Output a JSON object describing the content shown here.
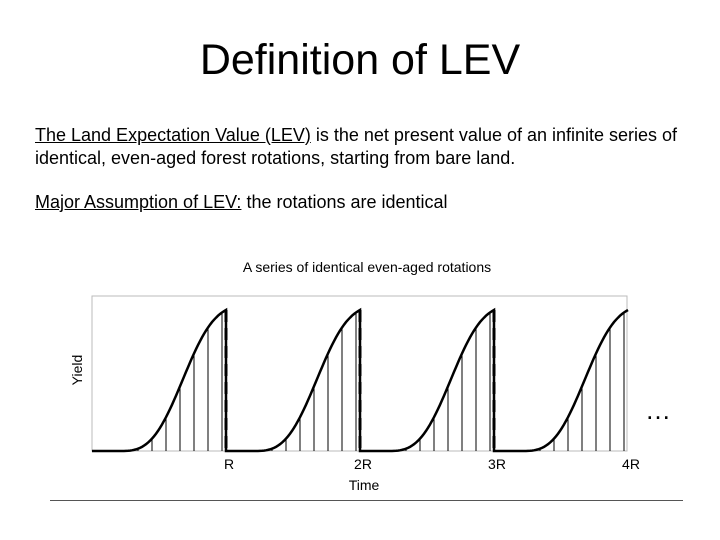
{
  "title": "Definition of LEV",
  "definition": {
    "term": "The Land Expectation Value (LEV)",
    "text": " is the net present value  of an infinite series of identical, even-aged forest rotations, starting from bare land."
  },
  "assumption": {
    "term": "Major Assumption of LEV:",
    "text": " the rotations are identical"
  },
  "chart_data": {
    "type": "area",
    "title": "A series of identical even-aged rotations",
    "xlabel": "Time",
    "ylabel": "Yield",
    "categories": [
      "R",
      "2R",
      "3R",
      "4R"
    ],
    "rotations": 4,
    "continuation_marker": "…",
    "grid": false
  }
}
